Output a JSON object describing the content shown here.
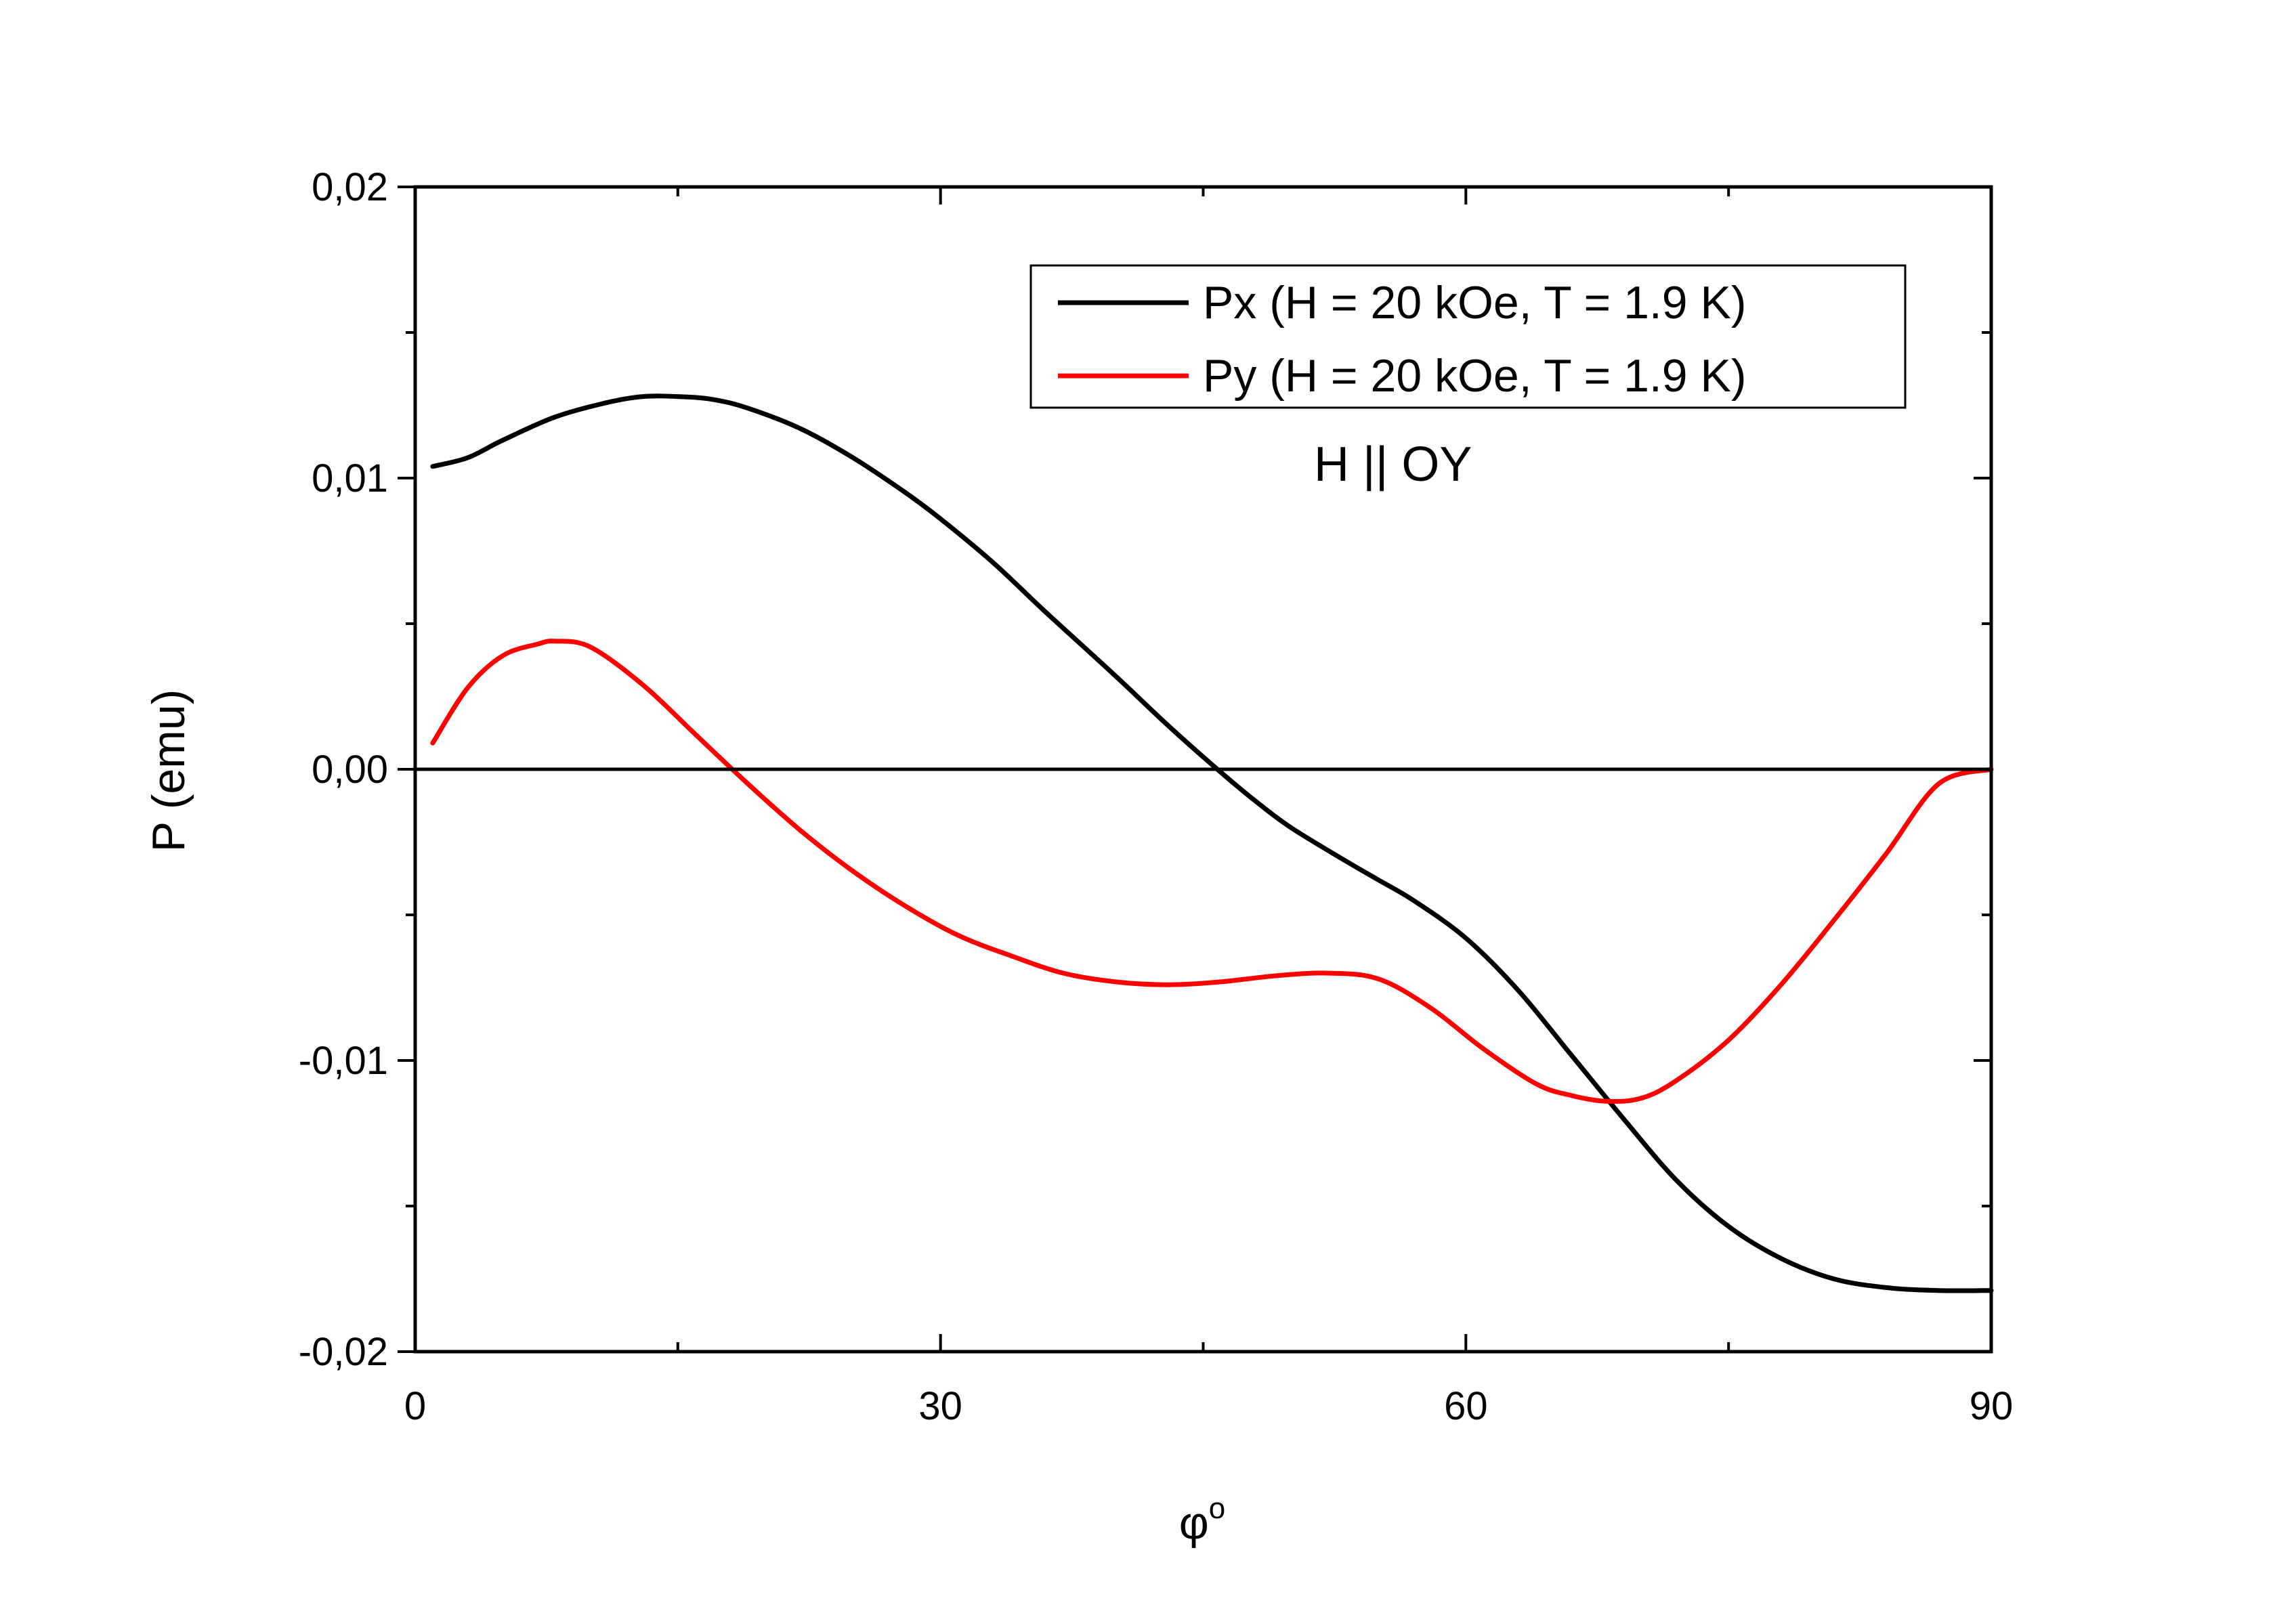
{
  "chart_data": {
    "type": "line",
    "xlabel": "φ",
    "xlabel_superscript": "o",
    "ylabel": "P (emu)",
    "xlim": [
      0,
      90
    ],
    "ylim": [
      -0.02,
      0.02
    ],
    "x_ticks": [
      {
        "value": 0,
        "label": "0"
      },
      {
        "value": 30,
        "label": "30"
      },
      {
        "value": 60,
        "label": "60"
      },
      {
        "value": 90,
        "label": "90"
      }
    ],
    "x_minor_ticks": [
      15,
      45,
      75
    ],
    "y_ticks": [
      {
        "value": 0.02,
        "label": "0,02"
      },
      {
        "value": 0.01,
        "label": "0,01"
      },
      {
        "value": 0.0,
        "label": "0,00"
      },
      {
        "value": -0.01,
        "label": "-0,01"
      },
      {
        "value": -0.02,
        "label": "-0,02"
      }
    ],
    "y_minor_ticks": [
      0.015,
      0.005,
      -0.005,
      -0.015
    ],
    "zero_line": true,
    "grid": false,
    "legend_position": "top-right",
    "annotation": "H || OY",
    "series": [
      {
        "name": "Px (H = 20 kOe, T = 1.9 K)",
        "color": "#000000",
        "x": [
          1,
          3,
          5,
          8,
          11,
          13,
          15,
          17,
          19,
          22,
          25,
          28,
          30,
          33,
          36,
          40,
          43,
          46,
          48,
          50,
          53,
          55,
          57,
          60,
          63,
          66,
          69,
          72,
          75,
          78,
          81,
          84,
          87,
          90
        ],
        "y": [
          0.0104,
          0.0107,
          0.0113,
          0.0121,
          0.0126,
          0.0128,
          0.0128,
          0.0127,
          0.0124,
          0.0117,
          0.0107,
          0.0095,
          0.0086,
          0.0071,
          0.0054,
          0.0032,
          0.0015,
          -0.0001,
          -0.0011,
          -0.002,
          -0.0031,
          -0.0038,
          -0.0045,
          -0.0058,
          -0.0076,
          -0.0098,
          -0.012,
          -0.0141,
          -0.0157,
          -0.0168,
          -0.0175,
          -0.0178,
          -0.0179,
          -0.0179
        ]
      },
      {
        "name": "Py (H = 20 kOe, T = 1.9 K)",
        "color": "#ff0000",
        "x": [
          1,
          3,
          5,
          7,
          8,
          10,
          13,
          16,
          19,
          22,
          25,
          28,
          31,
          34,
          37,
          40,
          43,
          46,
          49,
          52,
          55,
          58,
          61,
          64,
          66,
          68,
          70,
          72,
          75,
          78,
          81,
          84,
          87,
          90
        ],
        "y": [
          0.0009,
          0.0028,
          0.0039,
          0.0043,
          0.0044,
          0.0042,
          0.0029,
          0.0012,
          -0.0005,
          -0.0021,
          -0.0035,
          -0.0047,
          -0.0057,
          -0.0064,
          -0.007,
          -0.0073,
          -0.0074,
          -0.0073,
          -0.0071,
          -0.007,
          -0.0072,
          -0.0082,
          -0.0096,
          -0.0108,
          -0.0112,
          -0.0114,
          -0.0113,
          -0.0107,
          -0.0093,
          -0.0074,
          -0.0052,
          -0.0029,
          -0.0005,
          0.0
        ]
      }
    ]
  }
}
